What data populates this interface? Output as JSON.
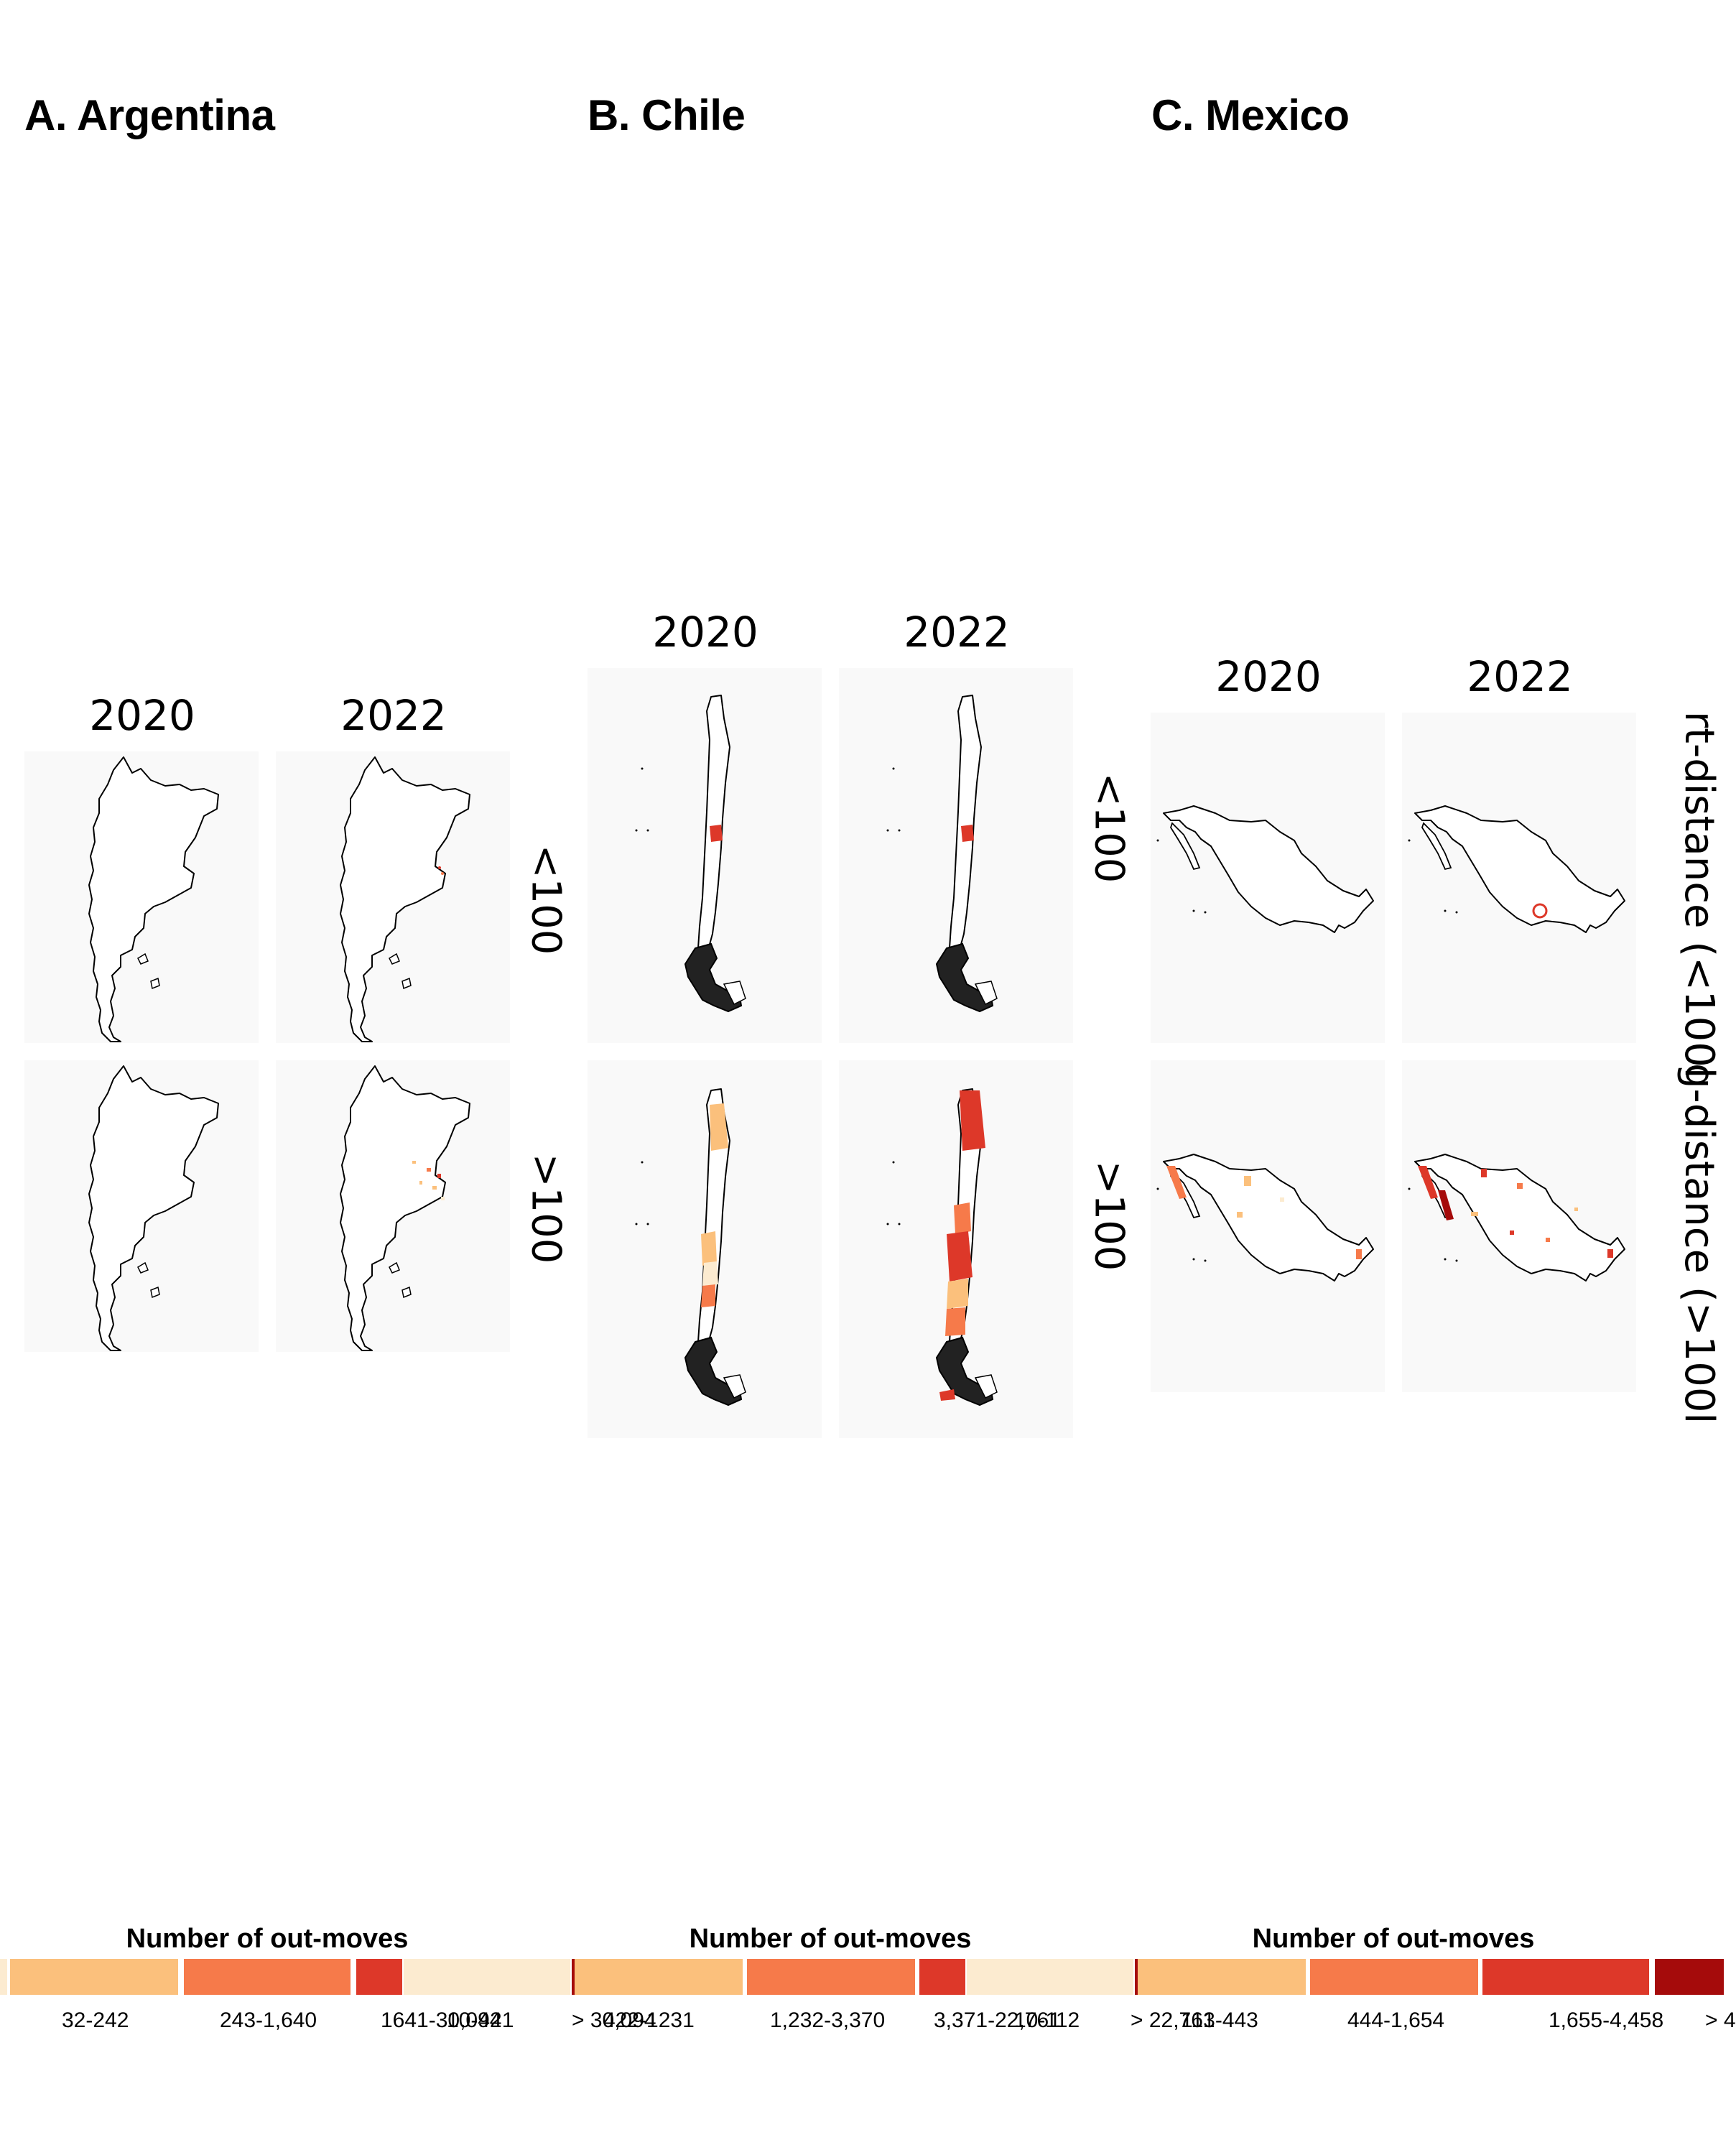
{
  "panels": {
    "argentina": {
      "title": "A. Argentina",
      "year1": "2020",
      "year2": "2022",
      "row1": "<100",
      "row2": ">100"
    },
    "chile": {
      "title": "B. Chile",
      "year1": "2020",
      "year2": "2022"
    },
    "mexico": {
      "title": "C. Mexico",
      "year1": "2020",
      "year2": "2022",
      "row1": "<100",
      "row2": ">100"
    }
  },
  "strip_labels": {
    "short": "rt-distance (<100l",
    "long": "g-distance (>100l"
  },
  "legends": [
    {
      "title": "Number of out-moves",
      "labels": [
        "32-242",
        "243-1,640",
        "1641-30,094",
        "> 30,094"
      ]
    },
    {
      "title": "Number of out-moves",
      "labels": [
        "10-421",
        "422-1231",
        "1,232-3,370",
        "3,371-22,761",
        "> 22,761"
      ]
    },
    {
      "title": "Number of out-moves",
      "labels": [
        "10-112",
        "113-443",
        "444-1,654",
        "1,655-4,458",
        "> 4"
      ]
    }
  ],
  "colors": {
    "class1": "#fcebd0",
    "class2": "#fbc07c",
    "class3": "#f67a4a",
    "class4": "#dd3829",
    "class5": "#a50b0b",
    "map_bg": "#f9f9f9"
  }
}
